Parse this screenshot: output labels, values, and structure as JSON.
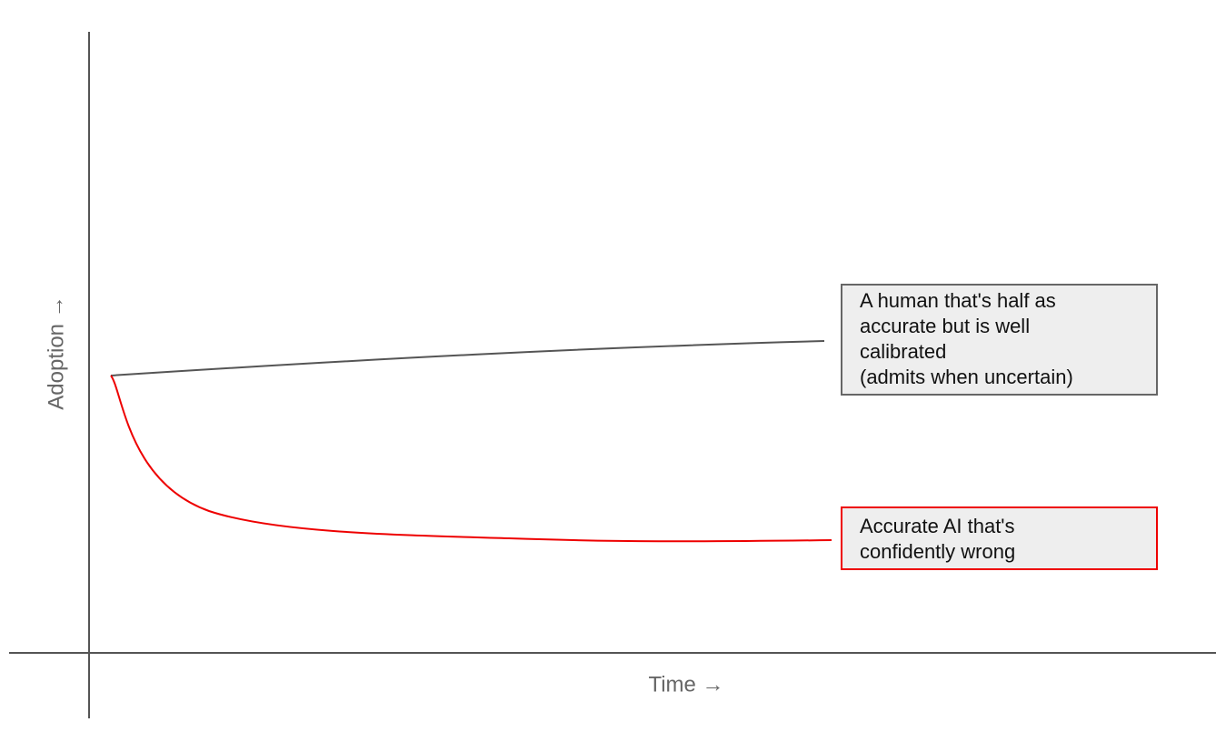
{
  "axes": {
    "y_label": "Adoption →",
    "x_label": "Time →"
  },
  "annotations": [
    {
      "lines": [
        "A human that's half as",
        "accurate but is well",
        "calibrated",
        "(admits when uncertain)"
      ]
    },
    {
      "lines": [
        "Accurate AI that's",
        "confidently wrong"
      ]
    }
  ]
}
